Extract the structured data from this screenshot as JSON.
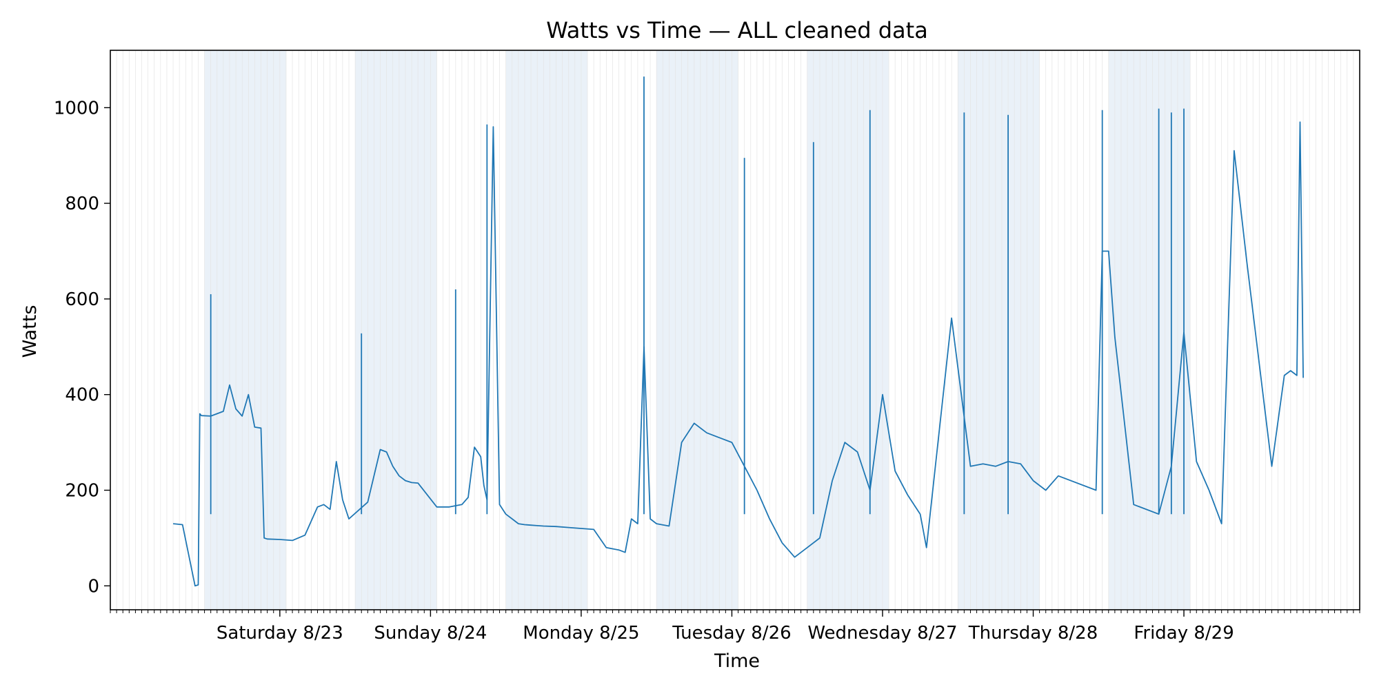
{
  "chart_data": {
    "type": "line",
    "title": "Watts vs Time — ALL cleaned data",
    "xlabel": "Time",
    "ylabel": "Watts",
    "ylim": [
      -50,
      1120
    ],
    "xlim": [
      "2025-08-22 09:00",
      "2025-08-30 16:00"
    ],
    "yticks": [
      0,
      200,
      400,
      600,
      800,
      1000
    ],
    "xticks": [
      {
        "date": "2025-08-23 12:00",
        "label": "Saturday 8/23"
      },
      {
        "date": "2025-08-24 12:00",
        "label": "Sunday 8/24"
      },
      {
        "date": "2025-08-25 12:00",
        "label": "Monday 8/25"
      },
      {
        "date": "2025-08-26 12:00",
        "label": "Tuesday 8/26"
      },
      {
        "date": "2025-08-27 12:00",
        "label": "Wednesday 8/27"
      },
      {
        "date": "2025-08-28 12:00",
        "label": "Thursday 8/28"
      },
      {
        "date": "2025-08-29 12:00",
        "label": "Friday 8/29"
      }
    ],
    "grid": "vertical hourly",
    "shaded_periods": [
      [
        "2025-08-23 00:00",
        "2025-08-23 13:00"
      ],
      [
        "2025-08-24 00:00",
        "2025-08-24 13:00"
      ],
      [
        "2025-08-25 00:00",
        "2025-08-25 13:00"
      ],
      [
        "2025-08-26 00:00",
        "2025-08-26 13:00"
      ],
      [
        "2025-08-27 00:00",
        "2025-08-27 13:00"
      ],
      [
        "2025-08-28 00:00",
        "2025-08-28 13:00"
      ],
      [
        "2025-08-29 00:00",
        "2025-08-29 13:00"
      ]
    ],
    "colors": {
      "line": "#1f77b4",
      "shade": "#dce8f4",
      "grid": "#e4e4e4"
    },
    "series": [
      {
        "x": [
          "2025-08-22 19:00",
          "2025-08-22 20:30",
          "2025-08-22 22:30",
          "2025-08-22 23:00",
          "2025-08-22 23:15",
          "2025-08-22 23:30",
          "2025-08-23 01:00",
          "2025-08-23 03:00",
          "2025-08-23 04:00",
          "2025-08-23 05:00",
          "2025-08-23 06:00",
          "2025-08-23 07:00",
          "2025-08-23 08:00",
          "2025-08-23 09:00",
          "2025-08-23 09:30",
          "2025-08-23 10:00",
          "2025-08-23 12:00",
          "2025-08-23 14:00",
          "2025-08-23 16:00",
          "2025-08-23 18:00",
          "2025-08-23 19:00",
          "2025-08-23 20:00",
          "2025-08-23 21:00",
          "2025-08-23 22:00",
          "2025-08-23 23:00",
          "2025-08-24 02:00",
          "2025-08-24 04:00",
          "2025-08-24 05:00",
          "2025-08-24 06:00",
          "2025-08-24 06:30",
          "2025-08-24 07:00",
          "2025-08-24 08:00",
          "2025-08-24 09:00",
          "2025-08-24 10:00",
          "2025-08-24 13:00",
          "2025-08-24 15:00",
          "2025-08-24 17:00",
          "2025-08-24 18:00",
          "2025-08-24 19:00",
          "2025-08-24 20:00",
          "2025-08-24 20:30",
          "2025-08-24 21:00",
          "2025-08-24 22:00",
          "2025-08-24 23:00",
          "2025-08-25 00:00",
          "2025-08-25 01:00",
          "2025-08-25 02:00",
          "2025-08-25 03:00",
          "2025-08-25 04:00",
          "2025-08-25 05:00",
          "2025-08-25 06:00",
          "2025-08-25 08:00",
          "2025-08-25 10:00",
          "2025-08-25 12:00",
          "2025-08-25 14:00",
          "2025-08-25 16:00",
          "2025-08-25 18:00",
          "2025-08-25 19:00",
          "2025-08-25 20:00",
          "2025-08-25 21:00",
          "2025-08-25 22:00",
          "2025-08-25 23:00",
          "2025-08-26 00:00",
          "2025-08-26 02:00",
          "2025-08-26 04:00",
          "2025-08-26 06:00",
          "2025-08-26 08:00",
          "2025-08-26 10:00",
          "2025-08-26 12:00",
          "2025-08-26 14:00",
          "2025-08-26 16:00",
          "2025-08-26 18:00",
          "2025-08-26 20:00",
          "2025-08-26 22:00",
          "2025-08-27 00:00",
          "2025-08-27 02:00",
          "2025-08-27 04:00",
          "2025-08-27 06:00",
          "2025-08-27 08:00",
          "2025-08-27 10:00",
          "2025-08-27 12:00",
          "2025-08-27 14:00",
          "2025-08-27 16:00",
          "2025-08-27 18:00",
          "2025-08-27 19:00",
          "2025-08-27 23:00",
          "2025-08-28 02:00",
          "2025-08-28 04:00",
          "2025-08-28 06:00",
          "2025-08-28 08:00",
          "2025-08-28 10:00",
          "2025-08-28 12:00",
          "2025-08-28 14:00",
          "2025-08-28 16:00",
          "2025-08-28 22:00",
          "2025-08-28 23:00",
          "2025-08-29 00:00",
          "2025-08-29 01:00",
          "2025-08-29 04:00",
          "2025-08-29 08:00",
          "2025-08-29 10:00",
          "2025-08-29 12:00",
          "2025-08-29 14:00",
          "2025-08-29 16:00",
          "2025-08-29 18:00",
          "2025-08-29 20:00",
          "2025-08-29 22:00",
          "2025-08-30 02:00",
          "2025-08-30 04:00",
          "2025-08-30 05:00",
          "2025-08-30 06:00",
          "2025-08-30 06:30",
          "2025-08-30 07:00"
        ],
        "y": [
          130,
          128,
          0,
          2,
          360,
          356,
          355,
          365,
          420,
          370,
          355,
          400,
          332,
          330,
          100,
          98,
          97,
          95,
          106,
          165,
          170,
          160,
          260,
          180,
          140,
          175,
          285,
          280,
          250,
          240,
          230,
          220,
          216,
          215,
          165,
          165,
          170,
          185,
          290,
          270,
          210,
          180,
          960,
          170,
          150,
          140,
          130,
          128,
          127,
          126,
          125,
          124,
          122,
          120,
          118,
          80,
          75,
          70,
          140,
          130,
          500,
          140,
          130,
          125,
          300,
          340,
          320,
          310,
          300,
          250,
          200,
          140,
          90,
          60,
          80,
          100,
          220,
          300,
          280,
          200,
          400,
          240,
          190,
          150,
          80,
          560,
          250,
          255,
          250,
          260,
          255,
          220,
          200,
          230,
          200,
          700,
          700,
          520,
          170,
          150,
          250,
          530,
          260,
          200,
          130,
          910,
          680,
          250,
          440,
          450,
          440,
          970,
          435
        ]
      }
    ],
    "annotations_spikes": [
      {
        "x": "2025-08-23 01:00",
        "y": 610
      },
      {
        "x": "2025-08-24 01:00",
        "y": 528
      },
      {
        "x": "2025-08-24 16:00",
        "y": 620
      },
      {
        "x": "2025-08-24 21:00",
        "y": 965
      },
      {
        "x": "2025-08-25 22:00",
        "y": 1065
      },
      {
        "x": "2025-08-26 14:00",
        "y": 895
      },
      {
        "x": "2025-08-27 01:00",
        "y": 928
      },
      {
        "x": "2025-08-27 10:00",
        "y": 995
      },
      {
        "x": "2025-08-28 01:00",
        "y": 990
      },
      {
        "x": "2025-08-28 08:00",
        "y": 985
      },
      {
        "x": "2025-08-28 23:00",
        "y": 995
      },
      {
        "x": "2025-08-29 08:00",
        "y": 998
      },
      {
        "x": "2025-08-29 10:00",
        "y": 990
      },
      {
        "x": "2025-08-29 12:00",
        "y": 998
      }
    ]
  }
}
